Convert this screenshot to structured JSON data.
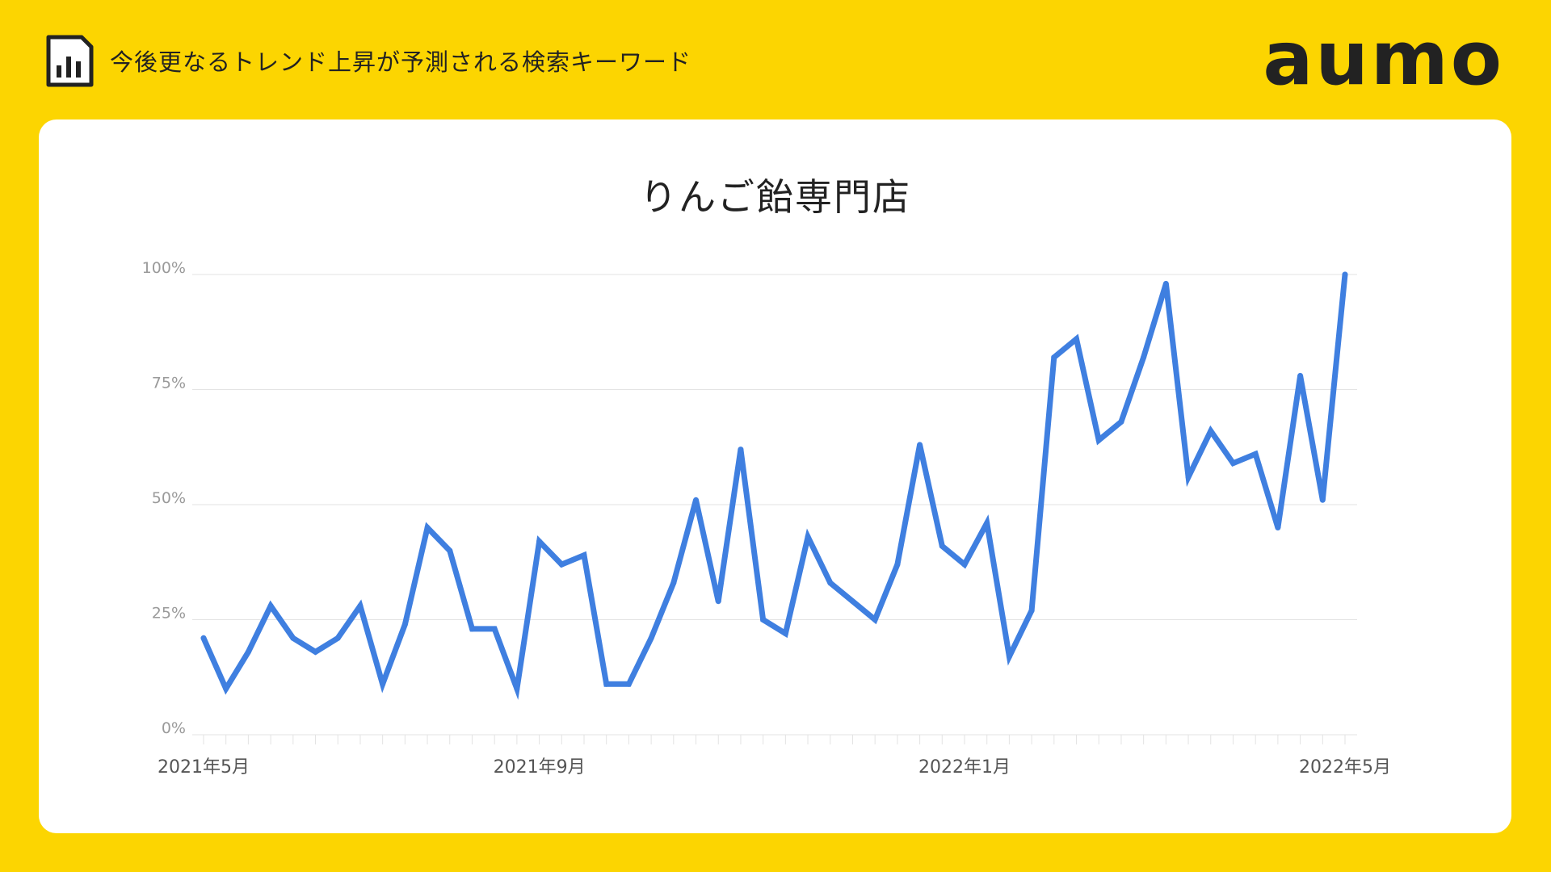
{
  "header": {
    "title": "今後更なるトレンド上昇が予測される検索キーワード",
    "icon": "bar-chart-document-icon",
    "logo": "aumo"
  },
  "colors": {
    "background": "#FCD501",
    "card": "#FFFFFF",
    "line": "#3F7FE0",
    "grid": "#E3E3E3",
    "tick_label": "#9A9A9A",
    "x_label": "#555555"
  },
  "chart_data": {
    "type": "line",
    "title": "りんご飴専門店",
    "xlabel": "",
    "ylabel": "",
    "ylim": [
      0,
      100
    ],
    "yticks": [
      "0%",
      "25%",
      "50%",
      "75%",
      "100%"
    ],
    "x_labels": [
      {
        "index": 0,
        "label": "2021年5月"
      },
      {
        "index": 15,
        "label": "2021年9月"
      },
      {
        "index": 34,
        "label": "2022年1月"
      },
      {
        "index": 51,
        "label": "2022年5月"
      }
    ],
    "grid": true,
    "legend": "none",
    "series": [
      {
        "values": [
          21,
          10,
          18,
          28,
          21,
          18,
          21,
          28,
          11,
          24,
          45,
          40,
          23,
          23,
          10,
          42,
          37,
          39,
          11,
          11,
          21,
          33,
          51,
          29,
          62,
          25,
          22,
          43,
          33,
          29,
          25,
          37,
          63,
          41,
          37,
          46,
          17,
          27,
          82,
          86,
          64,
          68,
          82,
          98,
          56,
          66,
          59,
          61,
          45,
          78,
          51,
          100
        ]
      }
    ]
  }
}
